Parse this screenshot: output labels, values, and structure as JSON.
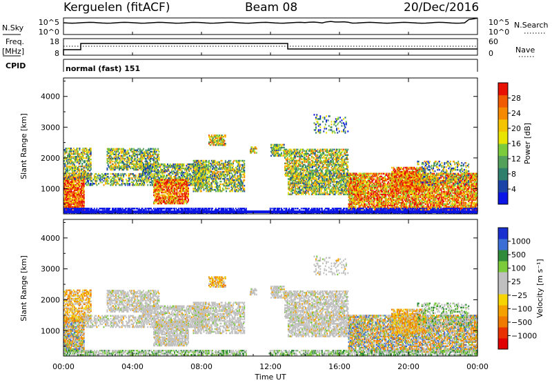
{
  "header": {
    "station": "Kerguelen (fitACF)",
    "beam": "Beam 08",
    "date": "20/Dec/2016"
  },
  "noise_panel": {
    "left_label": "N.Sky",
    "right_label": "N.Search",
    "ticks": [
      "10^5",
      "10^0"
    ]
  },
  "freq_panel": {
    "label_line1": "Freq.",
    "label_line2": "[MHz]",
    "left_ticks": [
      "18",
      "8"
    ],
    "right_ticks": [
      "60",
      "0"
    ],
    "right_label": "Nave"
  },
  "cpid": {
    "label": "CPID",
    "mode": "normal (fast) 151"
  },
  "chart_data": [
    {
      "type": "heatmap",
      "name": "Power",
      "ylabel": "Slant Range [km]",
      "ylim": [
        180,
        4600
      ],
      "yticks": [
        "1000",
        "2000",
        "3000",
        "4000"
      ],
      "colorbar_label": "Power [dB]",
      "colorbar_ticks": [
        "4",
        "8",
        "12",
        "16",
        "20",
        "24",
        "28"
      ],
      "colorbar_colors": [
        "#0b16e6",
        "#1a43a8",
        "#2f7f6c",
        "#53a15a",
        "#7ccb3c",
        "#e8e400",
        "#f5c400",
        "#f58a00",
        "#f05a00",
        "#e81000"
      ]
    },
    {
      "type": "heatmap",
      "name": "Velocity",
      "ylabel": "Slant Range [km]",
      "ylim": [
        180,
        4600
      ],
      "yticks": [
        "1000",
        "2000",
        "3000",
        "4000"
      ],
      "colorbar_label": "Velocity [m s⁻¹]",
      "colorbar_ticks": [
        "1000",
        "500",
        "100",
        "25",
        "−25",
        "−100",
        "−500",
        "−1000"
      ],
      "colorbar_colors": [
        "#1a2fd0",
        "#3b6fd6",
        "#2f8a3a",
        "#7ccb3c",
        "#c0c0c0",
        "#c0c0c0",
        "#f5d400",
        "#f5a200",
        "#f07a00",
        "#e83000",
        "#e00000"
      ]
    }
  ],
  "xaxis": {
    "label": "Time UT",
    "ticks": [
      "00:00",
      "04:00",
      "08:00",
      "12:00",
      "16:00",
      "20:00",
      "00:00"
    ]
  }
}
